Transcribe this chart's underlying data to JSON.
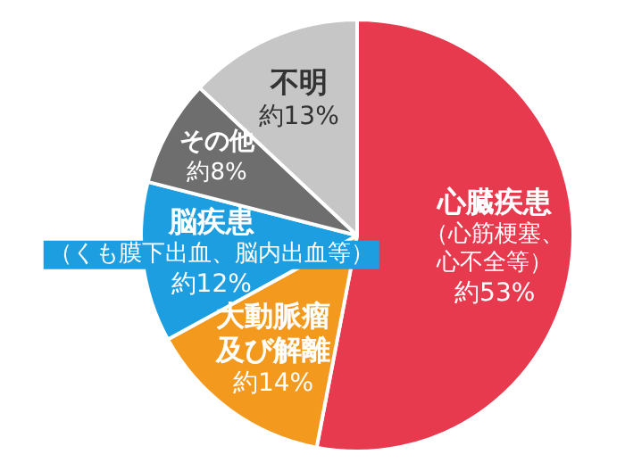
{
  "chart_data": {
    "type": "pie",
    "categories": [
      "心臓疾患",
      "大動脈瘤及び解離",
      "脳疾患",
      "その他",
      "不明"
    ],
    "values": [
      53,
      14,
      12,
      8,
      13
    ],
    "colors": [
      "#e83a4e",
      "#f39a1e",
      "#1c9ee0",
      "#6e6e6e",
      "#c6c6c6"
    ],
    "value_labels": [
      "約53%",
      "約14%",
      "約12%",
      "約8%",
      "約13%"
    ],
    "annotations": [
      {
        "text": "（心筋梗塞、心不全等）",
        "x": "心臓疾患"
      },
      {
        "text": "（くも膜下出血、脳内出血等）",
        "x": "脳疾患"
      }
    ],
    "legend": false
  }
}
